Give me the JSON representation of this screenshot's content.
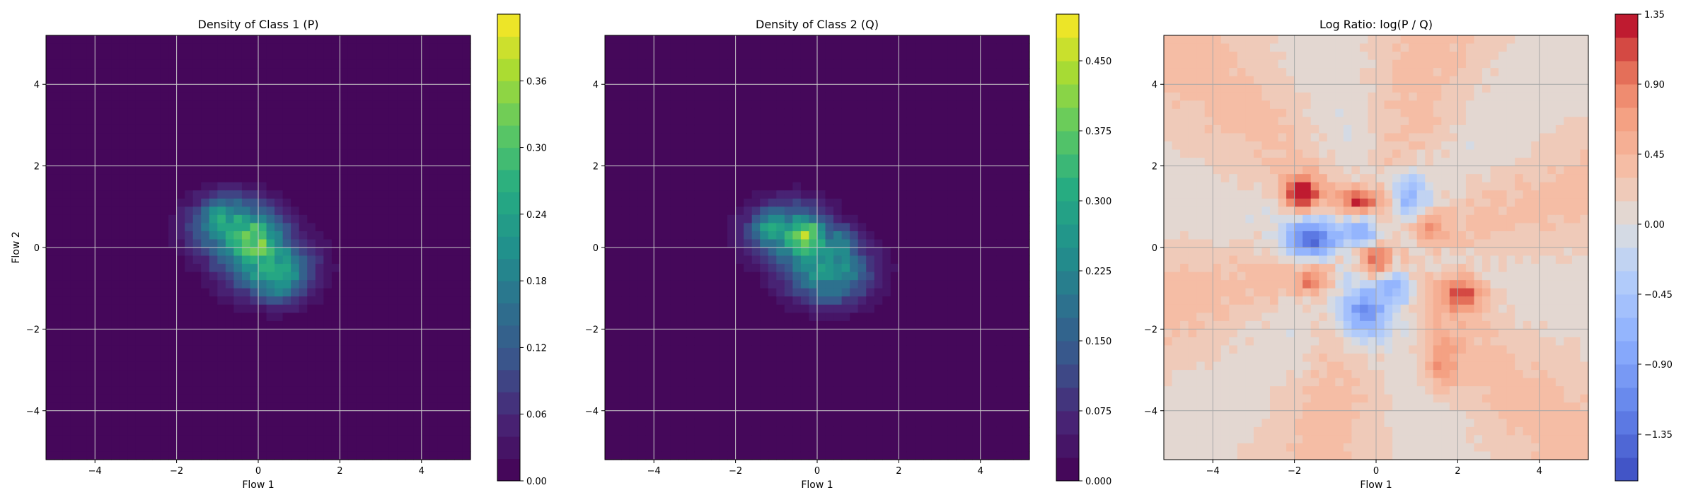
{
  "chart_data": [
    {
      "type": "heatmap",
      "title": "Density of Class 1 (P)",
      "xlabel": "Flow 1",
      "ylabel": "Flow 2",
      "xlim": [
        -5.2,
        5.2
      ],
      "ylim": [
        -5.2,
        5.2
      ],
      "xticks": [
        -4,
        -2,
        0,
        2,
        4
      ],
      "yticks": [
        -4,
        -2,
        0,
        2,
        4
      ],
      "grid": true,
      "colormap": "viridis",
      "colorbar": {
        "min": 0.0,
        "max": 0.42,
        "ticks": [
          "0.00",
          "0.06",
          "0.12",
          "0.18",
          "0.24",
          "0.30",
          "0.36"
        ],
        "levels": 21
      },
      "blobs": [
        {
          "x": -0.6,
          "y": 0.5,
          "sx": 0.75,
          "sy": 0.55,
          "w": 0.6
        },
        {
          "x": 0.3,
          "y": -0.5,
          "sx": 0.75,
          "sy": 0.55,
          "w": 0.6
        },
        {
          "x": 0.0,
          "y": 0.2,
          "sx": 0.35,
          "sy": 0.35,
          "w": 0.3
        },
        {
          "x": -1.0,
          "y": 0.8,
          "sx": 0.25,
          "sy": 0.25,
          "w": 0.25
        },
        {
          "x": 0.6,
          "y": -0.9,
          "sx": 0.3,
          "sy": 0.3,
          "w": 0.22
        }
      ],
      "peak": 0.32
    },
    {
      "type": "heatmap",
      "title": "Density of Class 2 (Q)",
      "xlabel": "Flow 1",
      "ylabel": "",
      "xlim": [
        -5.2,
        5.2
      ],
      "ylim": [
        -5.2,
        5.2
      ],
      "xticks": [
        -4,
        -2,
        0,
        2,
        4
      ],
      "yticks": [
        -4,
        -2,
        0,
        2,
        4
      ],
      "grid": true,
      "colormap": "viridis",
      "colorbar": {
        "min": 0.0,
        "max": 0.5,
        "ticks": [
          "0.000",
          "0.075",
          "0.150",
          "0.225",
          "0.300",
          "0.375",
          "0.450"
        ],
        "levels": 20
      },
      "blobs": [
        {
          "x": -0.7,
          "y": 0.4,
          "sx": 0.7,
          "sy": 0.5,
          "w": 0.55
        },
        {
          "x": 0.3,
          "y": -0.6,
          "sx": 0.75,
          "sy": 0.55,
          "w": 0.55
        },
        {
          "x": -0.2,
          "y": 0.3,
          "sx": 0.22,
          "sy": 0.22,
          "w": 0.45
        },
        {
          "x": -1.2,
          "y": 0.5,
          "sx": 0.2,
          "sy": 0.2,
          "w": 0.25
        },
        {
          "x": 0.7,
          "y": 0.2,
          "sx": 0.2,
          "sy": 0.2,
          "w": 0.25
        }
      ],
      "peak": 0.42
    },
    {
      "type": "heatmap",
      "title": "Log Ratio: log(P / Q)",
      "xlabel": "Flow 1",
      "ylabel": "",
      "xlim": [
        -5.2,
        5.2
      ],
      "ylim": [
        -5.2,
        5.2
      ],
      "xticks": [
        -4,
        -2,
        0,
        2,
        4
      ],
      "yticks": [
        -4,
        -2,
        0,
        2,
        4
      ],
      "grid": true,
      "colormap": "coolwarm",
      "colorbar": {
        "min": -1.65,
        "max": 1.35,
        "ticks": [
          "−1.35",
          "−0.90",
          "−0.45",
          "0.00",
          "0.45",
          "0.90",
          "1.35"
        ],
        "levels": 20
      },
      "background": 0.2,
      "blobs": [
        {
          "x": -1.6,
          "y": 0.2,
          "sx": 0.45,
          "sy": 0.35,
          "w": -1.6
        },
        {
          "x": -0.4,
          "y": 0.4,
          "sx": 0.3,
          "sy": 0.3,
          "w": -1.0
        },
        {
          "x": 0.8,
          "y": 1.3,
          "sx": 0.3,
          "sy": 0.4,
          "w": -0.9
        },
        {
          "x": -0.3,
          "y": -1.6,
          "sx": 0.4,
          "sy": 0.5,
          "w": -1.3
        },
        {
          "x": 0.5,
          "y": -1.0,
          "sx": 0.3,
          "sy": 0.3,
          "w": -0.8
        },
        {
          "x": -1.8,
          "y": 1.3,
          "sx": 0.3,
          "sy": 0.3,
          "w": 1.3
        },
        {
          "x": -0.4,
          "y": 1.1,
          "sx": 0.35,
          "sy": 0.25,
          "w": 1.0
        },
        {
          "x": 0.0,
          "y": -0.3,
          "sx": 0.25,
          "sy": 0.25,
          "w": 1.0
        },
        {
          "x": 2.1,
          "y": -1.1,
          "sx": 0.4,
          "sy": 0.3,
          "w": 1.0
        },
        {
          "x": -1.6,
          "y": -0.8,
          "sx": 0.3,
          "sy": 0.25,
          "w": 0.7
        },
        {
          "x": 1.3,
          "y": 0.5,
          "sx": 0.25,
          "sy": 0.25,
          "w": 0.6
        },
        {
          "x": 1.6,
          "y": -2.8,
          "sx": 0.3,
          "sy": 0.5,
          "w": 0.6
        }
      ]
    }
  ]
}
